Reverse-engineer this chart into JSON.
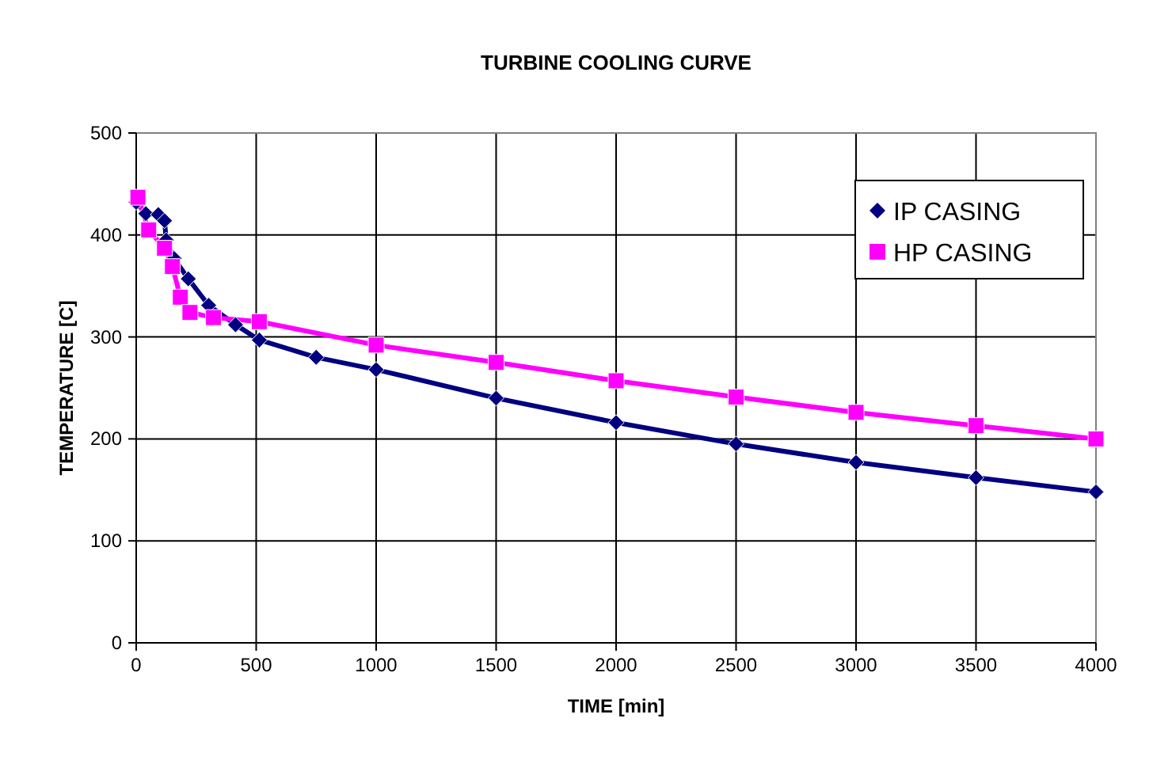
{
  "chart_data": {
    "type": "line",
    "title": "TURBINE COOLING CURVE",
    "xlabel": "TIME [min]",
    "ylabel": "TEMPERATURE [C]",
    "xlim": [
      0,
      4000
    ],
    "xticks": [
      0,
      500,
      1000,
      1500,
      2000,
      2500,
      3000,
      3500,
      4000
    ],
    "ylim": [
      0,
      500
    ],
    "yticks": [
      0,
      100,
      200,
      300,
      400,
      500
    ],
    "grid": true,
    "legend": "top right",
    "series": [
      {
        "name": "IP CASING",
        "color": "#000080",
        "marker": "diamond",
        "x": [
          0,
          40,
          92,
          118,
          125,
          158,
          217,
          302,
          414,
          513,
          750,
          1000,
          1500,
          2000,
          2500,
          3000,
          3500,
          4000
        ],
        "values": [
          432,
          421,
          420,
          414,
          395,
          377,
          357,
          331,
          312,
          297,
          280,
          268,
          240,
          216,
          195,
          177,
          162,
          148
        ]
      },
      {
        "name": "HP CASING",
        "color": "#ff00ff",
        "marker": "square",
        "x": [
          7,
          52,
          118,
          151,
          184,
          224,
          322,
          513,
          1000,
          1500,
          2000,
          2500,
          3000,
          3500,
          4000
        ],
        "values": [
          437,
          405,
          387,
          369,
          339,
          324,
          319,
          315,
          292,
          275,
          257,
          241,
          226,
          213,
          200
        ]
      }
    ]
  }
}
